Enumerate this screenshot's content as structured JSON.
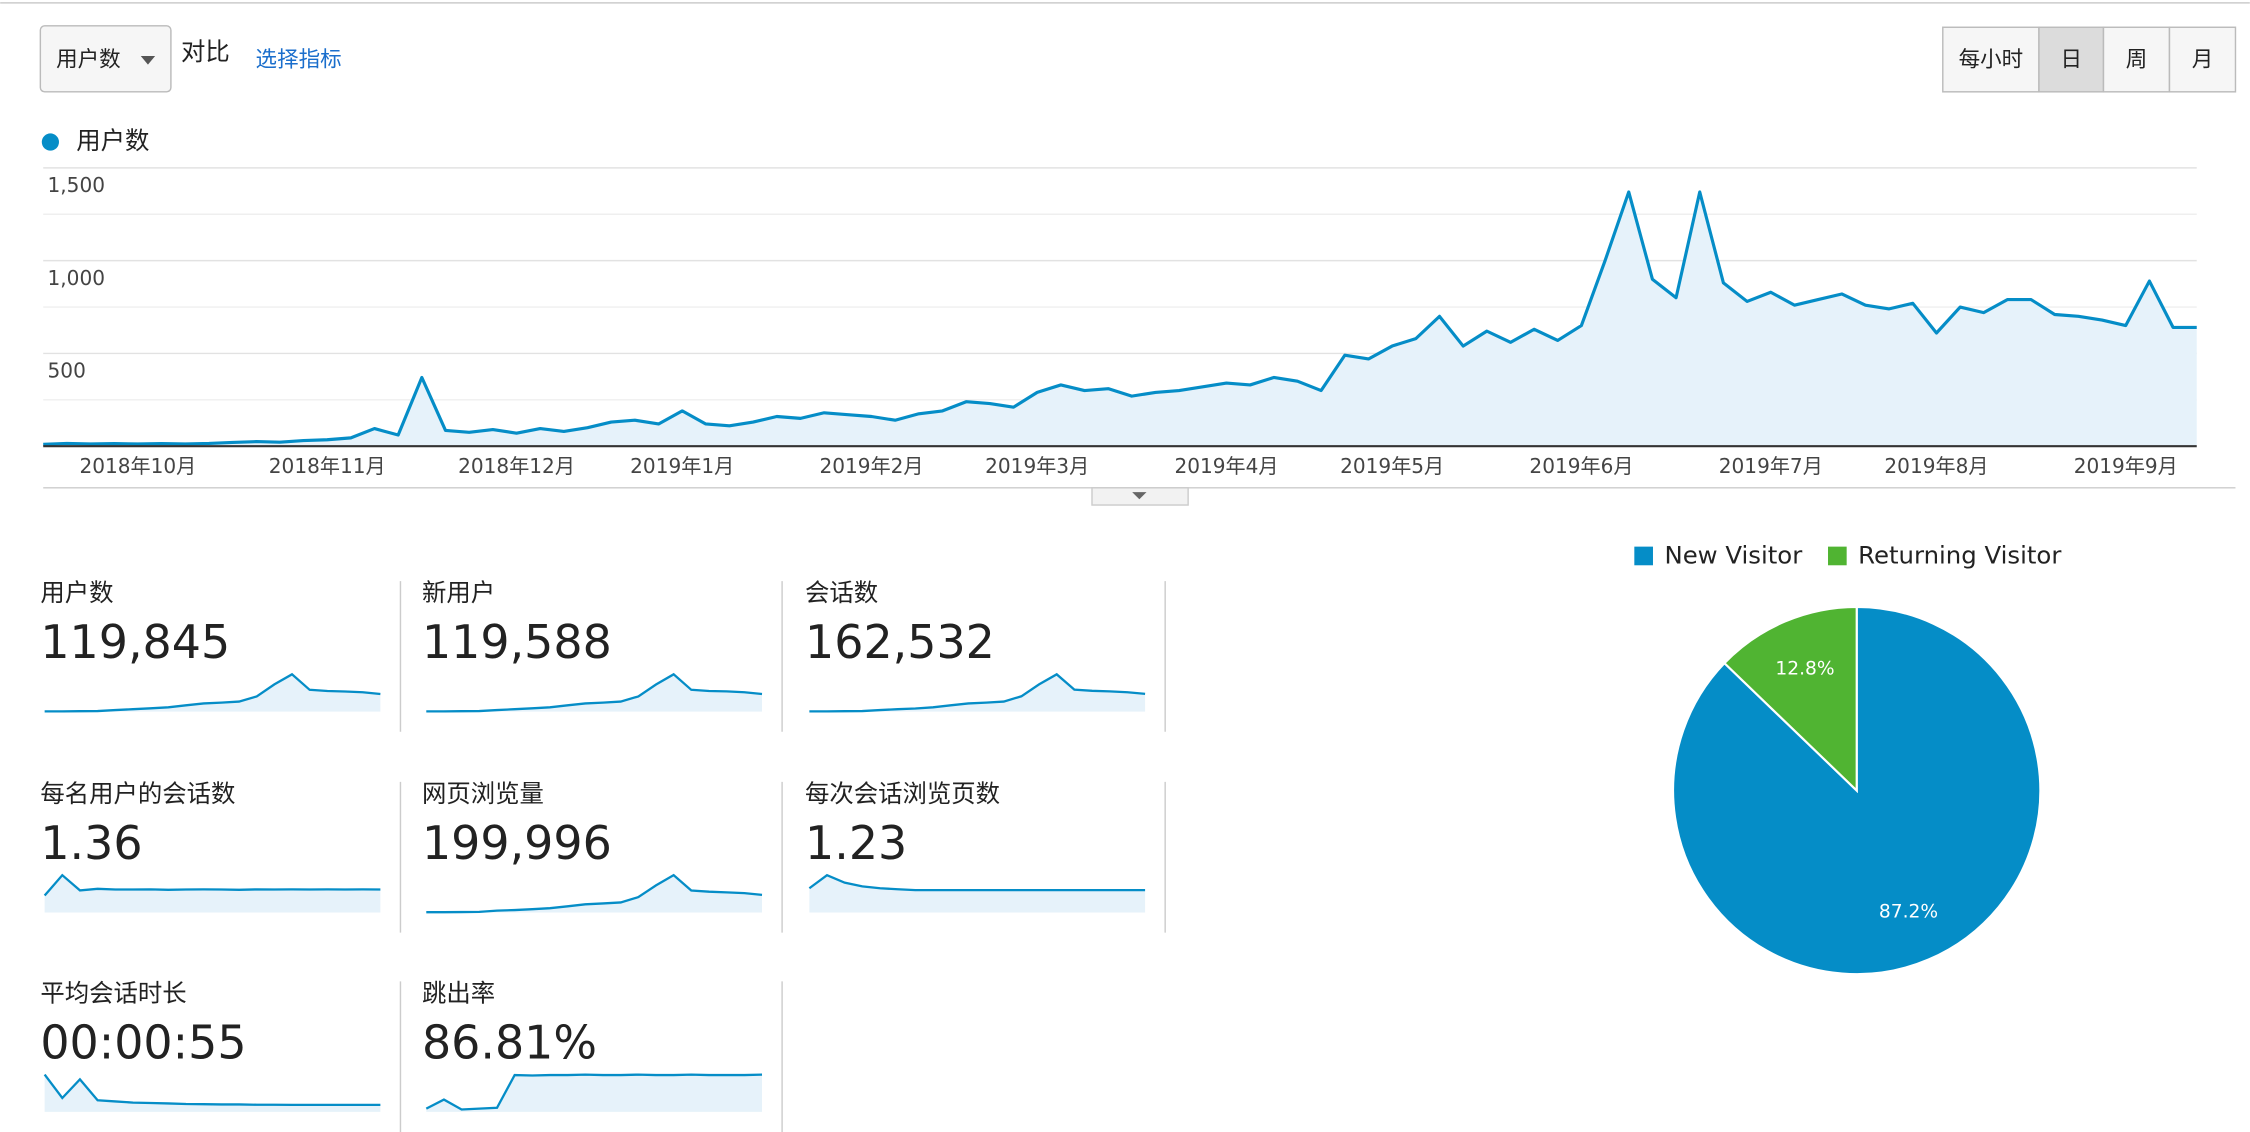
{
  "toolbar": {
    "metric_select": "用户数",
    "compare": "对比",
    "choose_metric": "选择指标",
    "granularity": [
      "每小时",
      "日",
      "周",
      "月"
    ],
    "active": "日"
  },
  "chart_data": [
    {
      "type": "line",
      "legend": "top-left",
      "grid": true,
      "categories": [
        null,
        null,
        null,
        null,
        "2018年10月",
        null,
        null,
        null,
        null,
        null,
        null,
        null,
        "2018年11月",
        null,
        null,
        null,
        null,
        null,
        null,
        null,
        "2018年12月",
        null,
        null,
        null,
        null,
        null,
        null,
        "2019年1月",
        null,
        null,
        null,
        null,
        null,
        null,
        null,
        "2019年2月",
        null,
        null,
        null,
        null,
        null,
        null,
        "2019年3月",
        null,
        null,
        null,
        null,
        null,
        null,
        null,
        "2019年4月",
        null,
        null,
        null,
        null,
        null,
        null,
        "2019年5月",
        null,
        null,
        null,
        null,
        null,
        null,
        null,
        "2019年6月",
        null,
        null,
        null,
        null,
        null,
        null,
        null,
        "2019年7月",
        null,
        null,
        null,
        null,
        null,
        null,
        "2019年8月",
        null,
        null,
        null,
        null,
        null,
        null,
        null,
        "2019年9月",
        null,
        null,
        null
      ],
      "series": [
        {
          "name": "用户数",
          "color": "#058dc7",
          "values": [
            10,
            15,
            12,
            14,
            12,
            14,
            12,
            15,
            20,
            25,
            22,
            30,
            35,
            45,
            95,
            60,
            370,
            85,
            75,
            90,
            70,
            95,
            80,
            100,
            130,
            140,
            120,
            190,
            120,
            110,
            130,
            160,
            150,
            180,
            170,
            160,
            140,
            175,
            190,
            240,
            230,
            210,
            290,
            330,
            300,
            310,
            270,
            290,
            300,
            320,
            340,
            330,
            370,
            350,
            300,
            490,
            470,
            540,
            580,
            700,
            540,
            620,
            560,
            630,
            570,
            650,
            1000,
            1370,
            900,
            800,
            1370,
            880,
            780,
            830,
            760,
            790,
            820,
            760,
            740,
            770,
            610,
            750,
            720,
            790,
            790,
            710,
            700,
            680,
            650,
            890,
            640,
            640
          ]
        }
      ],
      "ylim": [
        0,
        1500
      ],
      "yticks": [
        500,
        {
          "value": 1000,
          "label": "1,000"
        },
        {
          "value": 1500,
          "label": "1,500"
        }
      ]
    },
    {
      "type": "pie",
      "legend": "top",
      "categories": [
        "New Visitor",
        "Returning Visitor"
      ],
      "values": [
        87.2,
        12.8
      ],
      "value_labels": [
        "87.2%",
        "12.8%"
      ],
      "colors": [
        "#058dc7",
        "#50b432"
      ]
    }
  ],
  "metrics": [
    {
      "label": "用户数",
      "value": "119,845",
      "spark": [
        10,
        12,
        15,
        20,
        60,
        90,
        120,
        160,
        230,
        300,
        330,
        370,
        560,
        1000,
        1370,
        800,
        760,
        740,
        710,
        650
      ]
    },
    {
      "label": "新用户",
      "value": "119,588",
      "spark": [
        10,
        12,
        15,
        20,
        60,
        88,
        118,
        158,
        228,
        298,
        328,
        365,
        555,
        990,
        1360,
        795,
        755,
        735,
        705,
        645
      ]
    },
    {
      "label": "会话数",
      "value": "162,532",
      "spark": [
        14,
        16,
        20,
        27,
        80,
        120,
        160,
        215,
        310,
        405,
        450,
        500,
        760,
        1350,
        1850,
        1090,
        1030,
        1000,
        960,
        880
      ]
    },
    {
      "label": "每名用户的会话数",
      "value": "1.36",
      "spark": [
        1.0,
        2.2,
        1.3,
        1.4,
        1.35,
        1.35,
        1.36,
        1.34,
        1.35,
        1.36,
        1.35,
        1.34,
        1.36,
        1.35,
        1.36,
        1.35,
        1.36,
        1.35,
        1.36,
        1.35
      ]
    },
    {
      "label": "网页浏览量",
      "value": "199,996",
      "spark": [
        15,
        18,
        25,
        35,
        110,
        150,
        200,
        265,
        380,
        500,
        550,
        615,
        935,
        1660,
        2280,
        1340,
        1270,
        1230,
        1180,
        1080
      ]
    },
    {
      "label": "每次会话浏览页数",
      "value": "1.23",
      "spark": [
        1.3,
        2.0,
        1.6,
        1.4,
        1.3,
        1.25,
        1.2,
        1.2,
        1.2,
        1.2,
        1.2,
        1.2,
        1.2,
        1.2,
        1.2,
        1.2,
        1.2,
        1.2,
        1.2,
        1.2
      ]
    },
    {
      "label": "平均会话时长",
      "value": "00:00:55",
      "spark": [
        160,
        60,
        140,
        50,
        45,
        40,
        38,
        36,
        34,
        33,
        32,
        32,
        31,
        31,
        30,
        30,
        30,
        30,
        30,
        30
      ]
    },
    {
      "label": "跳出率",
      "value": "86.81%",
      "spark": [
        8,
        30,
        6,
        8,
        10,
        90,
        89,
        90,
        90,
        91,
        90,
        90,
        91,
        90,
        90,
        91,
        90,
        90,
        90,
        91
      ]
    }
  ]
}
